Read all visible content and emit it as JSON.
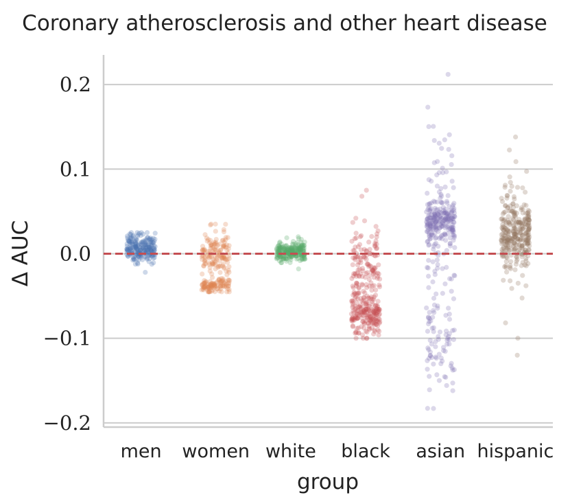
{
  "chart_data": {
    "type": "scatter",
    "subtype": "strip",
    "title": "Coronary atherosclerosis and other heart disease",
    "xlabel": "group",
    "ylabel": "Δ AUC",
    "categories": [
      "men",
      "women",
      "white",
      "black",
      "asian",
      "hispanic"
    ],
    "ylim": [
      -0.205,
      0.235
    ],
    "yticks": [
      0.2,
      0.1,
      0.0,
      -0.1,
      -0.2
    ],
    "ytick_labels": [
      "0.2",
      "0.1",
      "0.0",
      "−0.1",
      "−0.2"
    ],
    "grid": "horizontal",
    "reference_line": {
      "y": 0.0,
      "style": "dashed",
      "color": "#c44e52"
    },
    "series": [
      {
        "name": "men",
        "color": "#4c72b0",
        "n": 220,
        "clusters": [
          {
            "mean": 0.007,
            "sd": 0.008,
            "weight": 1.0
          }
        ],
        "min": -0.022,
        "max": 0.025
      },
      {
        "name": "women",
        "color": "#dd8452",
        "n": 240,
        "clusters": [
          {
            "mean": -0.002,
            "sd": 0.012,
            "weight": 0.6
          },
          {
            "mean": -0.037,
            "sd": 0.004,
            "weight": 0.4
          }
        ],
        "min": -0.045,
        "max": 0.035
      },
      {
        "name": "white",
        "color": "#55a868",
        "n": 220,
        "clusters": [
          {
            "mean": 0.002,
            "sd": 0.006,
            "weight": 1.0
          }
        ],
        "min": -0.018,
        "max": 0.02
      },
      {
        "name": "black",
        "color": "#c44e52",
        "n": 320,
        "clusters": [
          {
            "mean": -0.072,
            "sd": 0.012,
            "weight": 0.55
          },
          {
            "mean": -0.02,
            "sd": 0.025,
            "weight": 0.45
          }
        ],
        "min": -0.1,
        "max": 0.075
      },
      {
        "name": "asian",
        "color": "#8172b3",
        "n": 360,
        "clusters": [
          {
            "mean": 0.038,
            "sd": 0.012,
            "weight": 0.55
          },
          {
            "mean": 0.02,
            "sd": 0.07,
            "weight": 0.3
          },
          {
            "mean": -0.12,
            "sd": 0.03,
            "weight": 0.15
          }
        ],
        "min": -0.183,
        "max": 0.212
      },
      {
        "name": "hispanic",
        "color": "#937860",
        "n": 320,
        "clusters": [
          {
            "mean": 0.022,
            "sd": 0.018,
            "weight": 0.8
          },
          {
            "mean": 0.01,
            "sd": 0.05,
            "weight": 0.2
          }
        ],
        "min": -0.12,
        "max": 0.138
      }
    ]
  }
}
